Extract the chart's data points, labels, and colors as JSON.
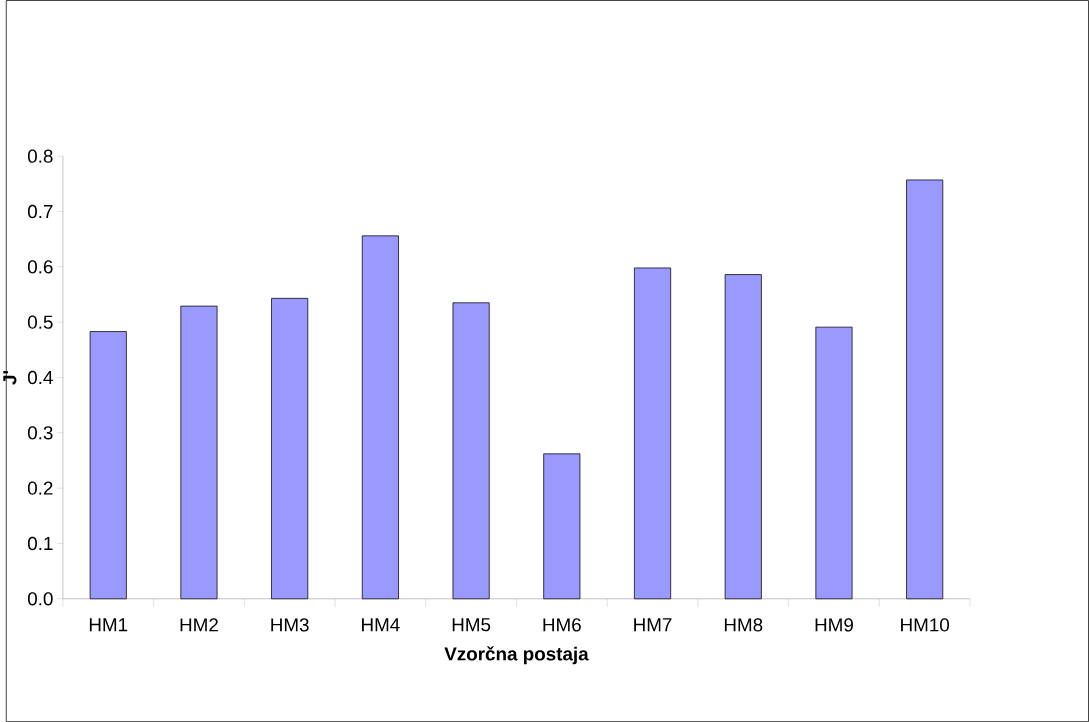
{
  "chart_data": {
    "type": "bar",
    "xlabel": "Vzorčna postaja",
    "ylabel": "J'",
    "categories": [
      "HM1",
      "HM2",
      "HM3",
      "HM4",
      "HM5",
      "HM6",
      "HM7",
      "HM8",
      "HM9",
      "HM10"
    ],
    "values": [
      0.483,
      0.529,
      0.543,
      0.656,
      0.535,
      0.262,
      0.598,
      0.586,
      0.491,
      0.757
    ],
    "color": "#9999ff",
    "ylim": [
      0,
      0.8
    ],
    "yticks": [
      {
        "value": 0,
        "label": "0.0"
      },
      0.1,
      0.2,
      0.3,
      0.4,
      0.5,
      0.6,
      0.7,
      0.8
    ]
  }
}
